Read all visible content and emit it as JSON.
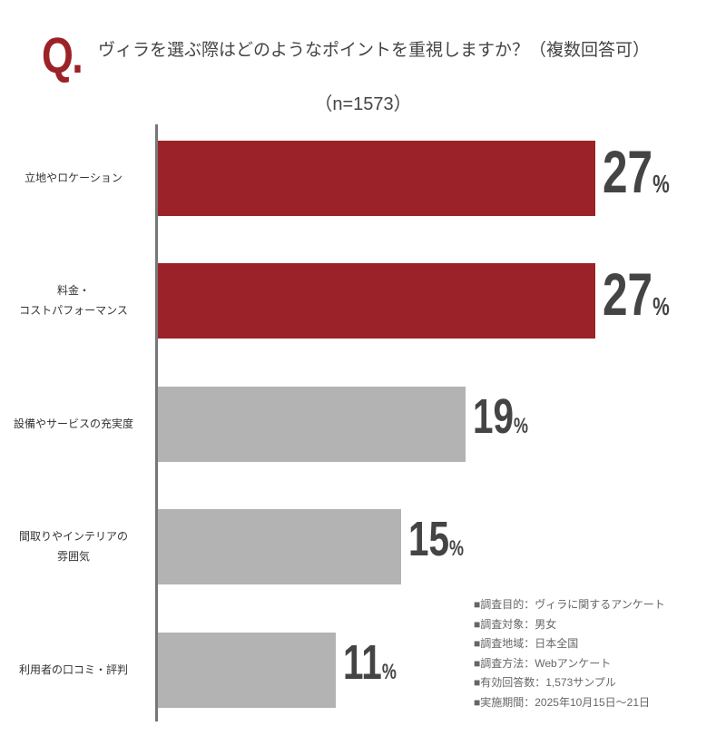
{
  "chart_data": {
    "type": "bar",
    "orientation": "horizontal",
    "title_mark": "Q.",
    "title": "ヴィラを選ぶ際はどのようなポイントを重視しますか？（複数回答可）",
    "subtitle": "（n=1573）",
    "unit": "%",
    "categories": [
      "立地やロケーション",
      "料金・\nコストパフォーマンス",
      "設備やサービスの充実度",
      "間取りやインテリアの\n雰囲気",
      "利用者の口コミ・評判"
    ],
    "values": [
      27,
      27,
      19,
      15,
      11
    ],
    "colors": [
      "#9b2228",
      "#9b2228",
      "#b3b3b3",
      "#b3b3b3",
      "#b3b3b3"
    ],
    "xlim": [
      0,
      27
    ]
  },
  "notes": [
    "■調査目的：ヴィラに関するアンケート",
    "■調査対象：男女",
    "■調査地域：日本全国",
    "■調査方法：Webアンケート",
    "■有効回答数：1,573サンプル",
    "■実施期間：2025年10月15日～21日"
  ]
}
